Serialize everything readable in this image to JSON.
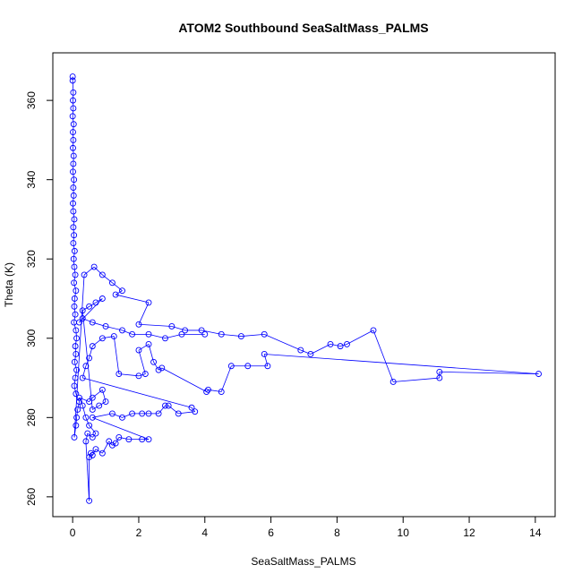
{
  "chart_data": {
    "type": "scatter",
    "title": "ATOM2 Southbound SeaSaltMass_PALMS",
    "xlabel": "SeaSaltMass_PALMS",
    "ylabel": "Theta (K)",
    "xlim": [
      -0.6,
      14.6
    ],
    "ylim": [
      255,
      372
    ],
    "xticks": [
      "0",
      "2",
      "4",
      "6",
      "8",
      "10",
      "12",
      "14"
    ],
    "yticks": [
      "260",
      "280",
      "300",
      "320",
      "340",
      "360"
    ],
    "xtick_values": [
      0,
      2,
      4,
      6,
      8,
      10,
      12,
      14
    ],
    "ytick_values": [
      260,
      280,
      300,
      320,
      340,
      360
    ],
    "grid": false,
    "marker": "open-circle",
    "connected": true,
    "color": "#0000ff",
    "series": [
      {
        "values": [
          [
            0,
            366
          ],
          [
            0,
            365
          ],
          [
            0.02,
            362
          ],
          [
            0.01,
            360
          ],
          [
            0.02,
            358
          ],
          [
            0,
            356
          ],
          [
            0.03,
            354
          ],
          [
            0.01,
            352
          ],
          [
            0.02,
            350
          ],
          [
            0.01,
            348
          ],
          [
            0.03,
            346
          ],
          [
            0.02,
            344
          ],
          [
            0.01,
            342
          ],
          [
            0.04,
            340
          ],
          [
            0.02,
            338
          ],
          [
            0.03,
            336
          ],
          [
            0.01,
            334
          ],
          [
            0.02,
            332
          ],
          [
            0.05,
            330
          ],
          [
            0.02,
            328
          ],
          [
            0.04,
            326
          ],
          [
            0.02,
            324
          ],
          [
            0.06,
            322
          ],
          [
            0.03,
            320
          ],
          [
            0.05,
            318
          ],
          [
            0.08,
            316
          ],
          [
            0.04,
            314
          ],
          [
            0.1,
            312
          ],
          [
            0.06,
            310
          ],
          [
            0.05,
            308
          ],
          [
            0.08,
            306
          ],
          [
            0.04,
            304
          ],
          [
            0.1,
            302
          ],
          [
            0.12,
            300
          ],
          [
            0.08,
            298
          ],
          [
            0.1,
            296
          ],
          [
            0.06,
            294
          ],
          [
            0.12,
            292
          ],
          [
            0.08,
            290
          ],
          [
            0.05,
            288
          ],
          [
            0.1,
            286
          ],
          [
            0.2,
            284
          ],
          [
            0.15,
            282
          ],
          [
            0.12,
            280
          ],
          [
            0.1,
            278
          ],
          [
            0.05,
            275
          ],
          [
            0.35,
            316
          ],
          [
            0.65,
            318
          ],
          [
            0.9,
            316
          ],
          [
            1.2,
            314
          ],
          [
            1.5,
            312
          ],
          [
            1.3,
            311
          ],
          [
            2.3,
            309
          ],
          [
            2.0,
            303.5
          ],
          [
            3.0,
            303
          ],
          [
            3.4,
            302
          ],
          [
            3.9,
            302
          ],
          [
            4.5,
            301
          ],
          [
            5.1,
            300.5
          ],
          [
            5.8,
            301
          ],
          [
            6.9,
            297
          ],
          [
            7.2,
            296
          ],
          [
            7.8,
            298.5
          ],
          [
            8.1,
            298
          ],
          [
            8.3,
            298.5
          ],
          [
            9.1,
            302
          ],
          [
            9.7,
            289
          ],
          [
            11.1,
            290
          ],
          [
            11.1,
            291.5
          ],
          [
            14.1,
            291
          ],
          [
            5.8,
            296
          ],
          [
            5.9,
            293
          ],
          [
            5.3,
            293
          ],
          [
            4.8,
            293
          ],
          [
            4.5,
            286.5
          ],
          [
            4.1,
            287
          ],
          [
            4.05,
            286.5
          ],
          [
            2.7,
            292.5
          ],
          [
            2.6,
            292
          ],
          [
            2.45,
            294
          ],
          [
            2.3,
            298.5
          ],
          [
            2.0,
            297
          ],
          [
            2.2,
            291
          ],
          [
            2.0,
            290.5
          ],
          [
            1.4,
            291
          ],
          [
            1.25,
            300.5
          ],
          [
            0.9,
            300
          ],
          [
            0.6,
            298
          ],
          [
            0.5,
            295
          ],
          [
            0.4,
            293
          ],
          [
            0.3,
            290
          ],
          [
            3.6,
            282.5
          ],
          [
            3.7,
            281.5
          ],
          [
            3.2,
            281
          ],
          [
            2.9,
            283
          ],
          [
            2.8,
            283
          ],
          [
            2.6,
            281
          ],
          [
            2.3,
            281
          ],
          [
            2.1,
            281
          ],
          [
            1.8,
            281
          ],
          [
            1.5,
            280
          ],
          [
            1.2,
            281
          ],
          [
            0.6,
            280
          ],
          [
            2.3,
            274.5
          ],
          [
            2.1,
            274.5
          ],
          [
            1.7,
            274.5
          ],
          [
            1.4,
            275
          ],
          [
            1.3,
            273.5
          ],
          [
            1.2,
            273
          ],
          [
            1.1,
            274
          ],
          [
            0.9,
            271
          ],
          [
            0.7,
            272
          ],
          [
            0.6,
            270.5
          ],
          [
            0.55,
            271
          ],
          [
            0.5,
            270
          ],
          [
            0.5,
            259
          ],
          [
            0.4,
            274
          ],
          [
            0.45,
            276
          ],
          [
            0.6,
            275
          ],
          [
            0.7,
            276
          ],
          [
            0.5,
            278
          ],
          [
            0.4,
            280
          ],
          [
            0.3,
            283
          ],
          [
            0.2,
            285
          ],
          [
            0.5,
            284
          ],
          [
            0.6,
            285
          ],
          [
            0.9,
            287
          ],
          [
            1.0,
            284
          ],
          [
            0.8,
            283
          ],
          [
            0.6,
            282
          ],
          [
            0.3,
            307
          ],
          [
            0.5,
            308
          ],
          [
            0.7,
            309
          ],
          [
            0.9,
            310
          ],
          [
            0.2,
            304
          ],
          [
            0.3,
            305
          ],
          [
            0.6,
            304
          ],
          [
            1.0,
            303
          ],
          [
            1.5,
            302
          ],
          [
            1.8,
            301
          ],
          [
            2.3,
            301
          ],
          [
            2.8,
            300
          ],
          [
            3.3,
            301
          ],
          [
            4.0,
            301
          ]
        ]
      }
    ]
  }
}
